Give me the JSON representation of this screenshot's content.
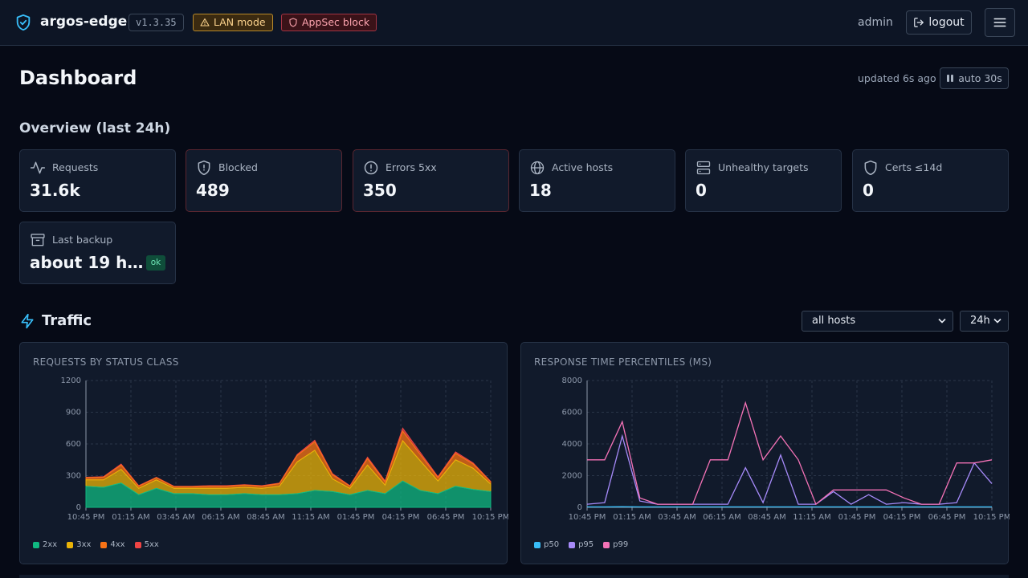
{
  "header": {
    "brand": "argos-edge",
    "version": "v1.3.35",
    "badge_lan": "LAN mode",
    "badge_appsec": "AppSec block",
    "user": "admin",
    "logout": "logout"
  },
  "page": {
    "title": "Dashboard",
    "updated": "updated 6s ago",
    "auto_refresh": "auto 30s",
    "overview_title": "Overview (last 24h)"
  },
  "stats": [
    {
      "label": "Requests",
      "value": "31.6k",
      "icon": "activity-icon"
    },
    {
      "label": "Blocked",
      "value": "489",
      "icon": "shield-icon"
    },
    {
      "label": "Errors 5xx",
      "value": "350",
      "icon": "alert-circle-icon"
    },
    {
      "label": "Active hosts",
      "value": "18",
      "icon": "globe-icon"
    },
    {
      "label": "Unhealthy targets",
      "value": "0",
      "icon": "server-icon"
    },
    {
      "label": "Certs ≤14d",
      "value": "0",
      "icon": "shield-icon"
    },
    {
      "label": "Last backup",
      "value": "about 19 h…",
      "badge": "ok",
      "icon": "archive-icon"
    }
  ],
  "traffic": {
    "title": "Traffic",
    "host_select": "all hosts",
    "range_select": "24h"
  },
  "colors": {
    "2xx": "#10b981",
    "3xx": "#eab308",
    "4xx": "#f97316",
    "5xx": "#ef4444",
    "p50": "#38bdf8",
    "p95": "#a78bfa",
    "p99": "#f472b6"
  },
  "chart_data": [
    {
      "type": "area",
      "title": "REQUESTS BY STATUS CLASS",
      "x_ticks": [
        "10:45 PM",
        "01:15 AM",
        "03:45 AM",
        "06:15 AM",
        "08:45 AM",
        "11:15 AM",
        "01:45 PM",
        "04:15 PM",
        "06:45 PM",
        "10:15 PM"
      ],
      "y_ticks": [
        0,
        300,
        600,
        900,
        1200
      ],
      "ylim": [
        0,
        1200
      ],
      "legend": [
        "2xx",
        "3xx",
        "4xx",
        "5xx"
      ],
      "stacked": true,
      "n_points": 24,
      "series": [
        {
          "name": "2xx",
          "values": [
            200,
            190,
            230,
            120,
            180,
            130,
            130,
            120,
            120,
            130,
            120,
            120,
            130,
            160,
            150,
            120,
            160,
            130,
            250,
            160,
            130,
            200,
            170,
            150
          ]
        },
        {
          "name": "3xx",
          "values": [
            60,
            70,
            130,
            60,
            80,
            50,
            50,
            60,
            60,
            60,
            60,
            80,
            300,
            380,
            120,
            60,
            240,
            80,
            380,
            280,
            120,
            250,
            200,
            70
          ]
        },
        {
          "name": "4xx",
          "values": [
            20,
            25,
            40,
            20,
            20,
            15,
            15,
            20,
            20,
            20,
            20,
            25,
            60,
            80,
            40,
            20,
            60,
            30,
            90,
            60,
            30,
            60,
            40,
            20
          ]
        },
        {
          "name": "5xx",
          "values": [
            5,
            5,
            10,
            5,
            5,
            5,
            5,
            5,
            5,
            5,
            5,
            5,
            10,
            15,
            10,
            5,
            15,
            10,
            30,
            20,
            10,
            15,
            10,
            5
          ]
        }
      ]
    },
    {
      "type": "line",
      "title": "RESPONSE TIME PERCENTILES (MS)",
      "x_ticks": [
        "10:45 PM",
        "01:15 AM",
        "03:45 AM",
        "06:15 AM",
        "08:45 AM",
        "11:15 AM",
        "01:45 PM",
        "04:15 PM",
        "06:45 PM",
        "10:15 PM"
      ],
      "y_ticks": [
        0,
        2000,
        4000,
        6000,
        8000
      ],
      "ylim": [
        0,
        8000
      ],
      "legend": [
        "p50",
        "p95",
        "p99"
      ],
      "n_points": 24,
      "series": [
        {
          "name": "p50",
          "values": [
            30,
            30,
            40,
            30,
            30,
            30,
            30,
            30,
            30,
            30,
            30,
            30,
            30,
            30,
            30,
            30,
            30,
            30,
            30,
            30,
            30,
            30,
            30,
            30
          ]
        },
        {
          "name": "p95",
          "values": [
            200,
            300,
            4500,
            400,
            200,
            200,
            200,
            200,
            200,
            2500,
            300,
            3300,
            200,
            200,
            1000,
            200,
            800,
            200,
            300,
            200,
            200,
            300,
            2800,
            1500
          ]
        },
        {
          "name": "p99",
          "values": [
            3000,
            3000,
            5400,
            600,
            200,
            200,
            200,
            3000,
            3000,
            6600,
            3000,
            4500,
            3000,
            200,
            1100,
            1100,
            1100,
            1100,
            600,
            200,
            200,
            2800,
            2800,
            3000
          ]
        }
      ]
    }
  ]
}
